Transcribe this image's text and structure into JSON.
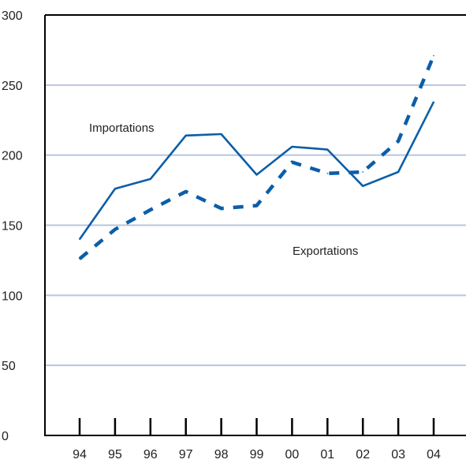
{
  "chart_data": {
    "type": "line",
    "categories": [
      "94",
      "95",
      "96",
      "97",
      "98",
      "99",
      "00",
      "01",
      "02",
      "03",
      "04"
    ],
    "series": [
      {
        "name": "Importations",
        "values": [
          140,
          176,
          183,
          214,
          215,
          186,
          206,
          204,
          178,
          188,
          238
        ],
        "color": "#0b5ea8",
        "style": "solid"
      },
      {
        "name": "Exportations",
        "values": [
          126,
          147,
          161,
          174,
          162,
          164,
          195,
          187,
          188,
          210,
          271
        ],
        "color": "#0b5ea8",
        "style": "dashed"
      }
    ],
    "ylim": [
      0,
      300
    ],
    "yticks": [
      0,
      50,
      100,
      150,
      200,
      250,
      300
    ],
    "grid": true,
    "grid_color": "#b8c4e0",
    "title": "",
    "xlabel": "",
    "ylabel": ""
  }
}
